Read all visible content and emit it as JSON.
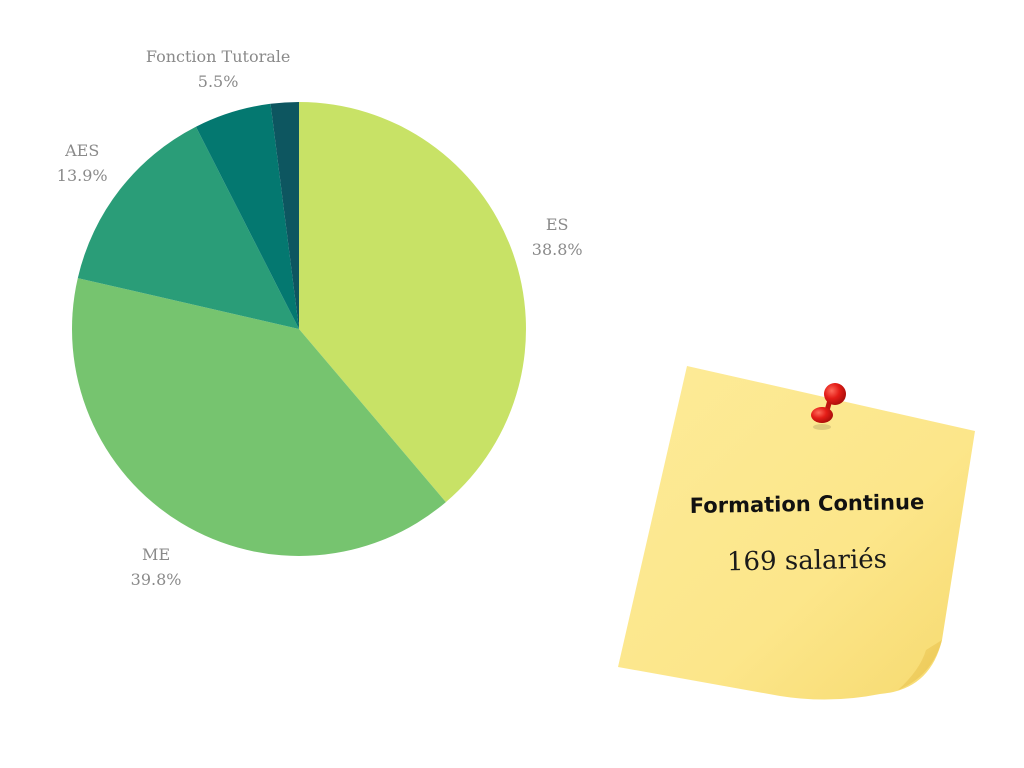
{
  "chart_data": {
    "type": "pie",
    "slices": [
      {
        "label": "ES",
        "value": 38.8,
        "value_label": "38.8%",
        "color": "#c8e266"
      },
      {
        "label": "ME",
        "value": 39.8,
        "value_label": "39.8%",
        "color": "#76c46f"
      },
      {
        "label": "AES",
        "value": 13.9,
        "value_label": "13.9%",
        "color": "#2a9d78"
      },
      {
        "label": "Fonction Tutorale",
        "value": 5.5,
        "value_label": "5.5%",
        "color": "#047870"
      },
      {
        "label": "",
        "value": 2.0,
        "value_label": "",
        "color": "#0d5660"
      }
    ],
    "start_angle": "top, clockwise",
    "legend": "none"
  },
  "note": {
    "title": "Formation Continue",
    "value": "169 salariés",
    "paper_color": "#fce78a",
    "pin_color": "#e0201c"
  }
}
